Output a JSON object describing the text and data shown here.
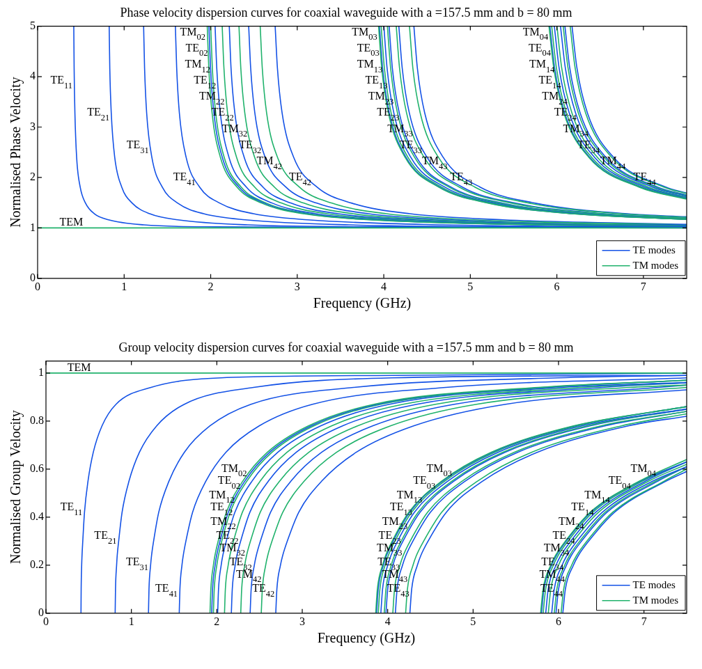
{
  "chart_data": [
    {
      "type": "line",
      "title": "Phase velocity dispersion curves for coaxial waveguide with a =157.5 mm and b = 80 mm",
      "xlabel": "Frequency (GHz)",
      "ylabel": "Normalised Phase Velocity",
      "xlim": [
        0,
        7.5
      ],
      "xticks": [
        0,
        1,
        2,
        3,
        4,
        5,
        6,
        7
      ],
      "ylim": [
        0,
        5
      ],
      "yticks": [
        0,
        1,
        2,
        3,
        4,
        5
      ],
      "grid": false,
      "legend": "bottom right",
      "marker": "none",
      "line_style": "solid",
      "series": [
        {
          "color": "#20b26c",
          "x": [
            0,
            7.5
          ],
          "values": [
            1,
            1
          ]
        },
        {
          "name": "TE modes",
          "color": "#1452e6",
          "x": [
            0.418,
            0.422,
            0.431,
            0.451,
            0.492,
            0.554,
            0.656,
            0.82,
            1.23,
            2.05,
            4.1,
            7.5
          ],
          "values": [
            5,
            4.17,
            3.28,
            2.4,
            1.81,
            1.49,
            1.28,
            1.16,
            1.06,
            1.02,
            1.01,
            1
          ]
        },
        {
          "color": "#1452e6",
          "x": [
            0.827,
            0.834,
            0.851,
            0.891,
            0.972,
            1.094,
            1.296,
            1.62,
            2.43,
            4.05,
            7.5
          ],
          "values": [
            5,
            4.17,
            3.28,
            2.4,
            1.81,
            1.49,
            1.28,
            1.16,
            1.06,
            1.02,
            1.01
          ]
        },
        {
          "color": "#1452e6",
          "x": [
            1.225,
            1.236,
            1.26,
            1.32,
            1.44,
            1.62,
            1.92,
            2.4,
            3.6,
            6,
            7.5
          ],
          "values": [
            5,
            4.17,
            3.28,
            2.4,
            1.81,
            1.49,
            1.28,
            1.16,
            1.06,
            1.02,
            1.01
          ]
        },
        {
          "color": "#1452e6",
          "x": [
            1.592,
            1.607,
            1.638,
            1.716,
            1.872,
            2.106,
            2.496,
            3.12,
            4.68,
            7.5
          ],
          "values": [
            5,
            4.17,
            3.28,
            2.4,
            1.81,
            1.49,
            1.28,
            1.16,
            1.06,
            1.02
          ]
        },
        {
          "name": "TM modes",
          "color": "#20b26c",
          "x": [
            1.96,
            1.978,
            2.016,
            2.112,
            2.304,
            2.592,
            3.072,
            3.84,
            5.76,
            7.5
          ],
          "values": [
            5,
            4.17,
            3.28,
            2.4,
            1.81,
            1.49,
            1.28,
            1.16,
            1.06,
            1.03
          ]
        },
        {
          "color": "#1452e6",
          "x": [
            1.98,
            1.998,
            2.037,
            2.134,
            2.328,
            2.619,
            3.104,
            3.88,
            5.82,
            7.5
          ],
          "values": [
            5,
            4.17,
            3.28,
            2.4,
            1.81,
            1.49,
            1.28,
            1.16,
            1.06,
            1.04
          ]
        },
        {
          "color": "#20b26c",
          "x": [
            2,
            2.019,
            2.058,
            2.156,
            2.352,
            2.646,
            3.136,
            3.92,
            5.88,
            7.5
          ],
          "values": [
            5,
            4.17,
            3.28,
            2.4,
            1.81,
            1.49,
            1.28,
            1.16,
            1.06,
            1.04
          ]
        },
        {
          "color": "#1452e6",
          "x": [
            2.051,
            2.07,
            2.111,
            2.211,
            2.412,
            2.714,
            3.216,
            4.02,
            6.03,
            7.5
          ],
          "values": [
            5,
            4.17,
            3.28,
            2.4,
            1.81,
            1.49,
            1.28,
            1.16,
            1.06,
            1.04
          ]
        },
        {
          "color": "#20b26c",
          "x": [
            2.133,
            2.153,
            2.195,
            2.299,
            2.508,
            2.822,
            3.344,
            4.18,
            6.27,
            7.5
          ],
          "values": [
            5,
            4.17,
            3.28,
            2.4,
            1.81,
            1.49,
            1.28,
            1.16,
            1.06,
            1.04
          ]
        },
        {
          "color": "#1452e6",
          "x": [
            2.215,
            2.235,
            2.279,
            2.387,
            2.604,
            2.93,
            3.472,
            4.34,
            6.51,
            7.5
          ],
          "values": [
            5,
            4.17,
            3.28,
            2.4,
            1.81,
            1.49,
            1.28,
            1.16,
            1.06,
            1.05
          ]
        },
        {
          "color": "#20b26c",
          "x": [
            2.327,
            2.348,
            2.394,
            2.508,
            2.736,
            3.078,
            3.648,
            4.56,
            6.84,
            7.5
          ],
          "values": [
            5,
            4.17,
            3.28,
            2.4,
            1.81,
            1.49,
            1.28,
            1.16,
            1.06,
            1.05
          ]
        },
        {
          "color": "#1452e6",
          "x": [
            2.439,
            2.462,
            2.51,
            2.629,
            2.868,
            3.227,
            3.824,
            4.78,
            7.17,
            7.5
          ],
          "values": [
            5,
            4.17,
            3.28,
            2.4,
            1.81,
            1.49,
            1.28,
            1.16,
            1.06,
            1.06
          ]
        },
        {
          "color": "#20b26c",
          "x": [
            2.572,
            2.596,
            2.646,
            2.772,
            3.024,
            3.402,
            4.032,
            5.04,
            7.5
          ],
          "values": [
            5,
            4.17,
            3.28,
            2.4,
            1.81,
            1.49,
            1.28,
            1.16,
            1.06
          ]
        },
        {
          "color": "#1452e6",
          "x": [
            2.745,
            2.771,
            2.825,
            2.959,
            3.228,
            3.632,
            4.304,
            5.38,
            7.5
          ],
          "values": [
            5,
            4.17,
            3.28,
            2.4,
            1.81,
            1.49,
            1.28,
            1.16,
            1.07
          ]
        },
        {
          "color": "#20b26c",
          "x": [
            3.94,
            3.976,
            4.053,
            4.246,
            4.632,
            5.211,
            6.176,
            7.5
          ],
          "values": [
            5,
            4.17,
            3.28,
            2.4,
            1.81,
            1.49,
            1.28,
            1.17
          ]
        },
        {
          "color": "#1452e6",
          "x": [
            3.95,
            3.986,
            4.064,
            4.257,
            4.644,
            5.225,
            6.192,
            7.5
          ],
          "values": [
            5,
            4.17,
            3.28,
            2.4,
            1.81,
            1.49,
            1.28,
            1.17
          ]
        },
        {
          "color": "#20b26c",
          "x": [
            3.97,
            4.007,
            4.085,
            4.279,
            4.668,
            5.252,
            6.224,
            7.5
          ],
          "values": [
            5,
            4.17,
            3.28,
            2.4,
            1.81,
            1.49,
            1.28,
            1.17
          ]
        },
        {
          "color": "#1452e6",
          "x": [
            4.001,
            4.038,
            4.116,
            4.312,
            4.704,
            5.292,
            6.272,
            7.5
          ],
          "values": [
            5,
            4.17,
            3.28,
            2.4,
            1.81,
            1.49,
            1.28,
            1.17
          ]
        },
        {
          "color": "#20b26c",
          "x": [
            4.042,
            4.079,
            4.158,
            4.356,
            4.752,
            5.346,
            6.336,
            7.5
          ],
          "values": [
            5,
            4.17,
            3.28,
            2.4,
            1.81,
            1.49,
            1.28,
            1.18
          ]
        },
        {
          "color": "#1452e6",
          "x": [
            4.062,
            4.099,
            4.179,
            4.378,
            4.776,
            5.373,
            6.368,
            7.5
          ],
          "values": [
            5,
            4.17,
            3.28,
            2.4,
            1.81,
            1.49,
            1.28,
            1.18
          ]
        },
        {
          "color": "#20b26c",
          "x": [
            4.144,
            4.182,
            4.263,
            4.466,
            4.872,
            5.481,
            6.496,
            7.5
          ],
          "values": [
            5,
            4.17,
            3.28,
            2.4,
            1.81,
            1.49,
            1.28,
            1.19
          ]
        },
        {
          "color": "#1452e6",
          "x": [
            4.174,
            4.213,
            4.295,
            4.499,
            4.908,
            5.522,
            6.544,
            7.5
          ],
          "values": [
            5,
            4.17,
            3.28,
            2.4,
            1.81,
            1.49,
            1.28,
            1.19
          ]
        },
        {
          "color": "#20b26c",
          "x": [
            4.297,
            4.336,
            4.421,
            4.631,
            5.052,
            5.684,
            6.736,
            7.5
          ],
          "values": [
            5,
            4.17,
            3.28,
            2.4,
            1.81,
            1.49,
            1.28,
            1.21
          ]
        },
        {
          "color": "#1452e6",
          "x": [
            4.348,
            4.388,
            4.473,
            4.686,
            5.112,
            5.751,
            6.816,
            7.5
          ],
          "values": [
            5,
            4.17,
            3.28,
            2.4,
            1.81,
            1.49,
            1.28,
            1.22
          ]
        },
        {
          "color": "#20b26c",
          "x": [
            5.909,
            5.964,
            6.08,
            6.369,
            6.948,
            7.5
          ],
          "values": [
            5,
            4.17,
            3.28,
            2.4,
            1.81,
            1.57
          ]
        },
        {
          "color": "#1452e6",
          "x": [
            5.919,
            5.974,
            6.09,
            6.38,
            6.96,
            7.5
          ],
          "values": [
            5,
            4.17,
            3.28,
            2.4,
            1.81,
            1.58
          ]
        },
        {
          "color": "#20b26c",
          "x": [
            5.94,
            5.995,
            6.111,
            6.402,
            6.984,
            7.5
          ],
          "values": [
            5,
            4.17,
            3.28,
            2.4,
            1.81,
            1.59
          ]
        },
        {
          "color": "#1452e6",
          "x": [
            5.971,
            6.026,
            6.143,
            6.435,
            7.02,
            7.5
          ],
          "values": [
            5,
            4.17,
            3.28,
            2.4,
            1.81,
            1.6
          ]
        },
        {
          "color": "#20b26c",
          "x": [
            6.001,
            6.056,
            6.174,
            6.468,
            7.056,
            7.5
          ],
          "values": [
            5,
            4.17,
            3.28,
            2.4,
            1.81,
            1.61
          ]
        },
        {
          "color": "#1452e6",
          "x": [
            6.042,
            6.098,
            6.216,
            6.512,
            7.104,
            7.5
          ],
          "values": [
            5,
            4.17,
            3.28,
            2.4,
            1.81,
            1.63
          ]
        },
        {
          "color": "#20b26c",
          "x": [
            6.073,
            6.129,
            6.248,
            6.545,
            7.14,
            7.5
          ],
          "values": [
            5,
            4.17,
            3.28,
            2.4,
            1.81,
            1.64
          ]
        },
        {
          "color": "#1452e6",
          "x": [
            6.093,
            6.149,
            6.269,
            6.567,
            7.164,
            7.5
          ],
          "values": [
            5,
            4.17,
            3.28,
            2.4,
            1.81,
            1.65
          ]
        },
        {
          "color": "#20b26c",
          "x": [
            6.154,
            6.211,
            6.332,
            6.633,
            7.236,
            7.5
          ],
          "values": [
            5,
            4.17,
            3.28,
            2.4,
            1.81,
            1.68
          ]
        },
        {
          "color": "#1452e6",
          "x": [
            6.175,
            6.232,
            6.353,
            6.655,
            7.26,
            7.5
          ],
          "values": [
            5,
            4.17,
            3.28,
            2.4,
            1.81,
            1.69
          ]
        }
      ],
      "annotations": [
        {
          "text": "TE$_{11}$",
          "x": 0.426,
          "y": 3.82
        },
        {
          "text": "TE$_{21}$",
          "x": 0.855,
          "y": 3.18
        },
        {
          "text": "TE$_{31}$",
          "x": 1.31,
          "y": 2.54
        },
        {
          "text": "TE$_{41}$",
          "x": 1.848,
          "y": 1.9
        },
        {
          "text": "TEM",
          "x": 0.55,
          "y": 1
        },
        {
          "text": "TM$_{02}$",
          "x": 1.964,
          "y": 4.78
        },
        {
          "text": "TE$_{02}$",
          "x": 1.992,
          "y": 4.46
        },
        {
          "text": "TM$_{12}$",
          "x": 2.02,
          "y": 4.14
        },
        {
          "text": "TE$_{12}$",
          "x": 2.086,
          "y": 3.82
        },
        {
          "text": "TM$_{22}$",
          "x": 2.184,
          "y": 3.5
        },
        {
          "text": "TE$_{22}$",
          "x": 2.291,
          "y": 3.18
        },
        {
          "text": "TM$_{32}$",
          "x": 2.448,
          "y": 2.86
        },
        {
          "text": "TE$_{32}$",
          "x": 2.61,
          "y": 2.54
        },
        {
          "text": "TM$_{42}$",
          "x": 2.849,
          "y": 2.22
        },
        {
          "text": "TE$_{42}$",
          "x": 3.187,
          "y": 1.9
        },
        {
          "text": "TM$_{03}$",
          "x": 3.949,
          "y": 4.78
        },
        {
          "text": "TE$_{03}$",
          "x": 3.973,
          "y": 4.46
        },
        {
          "text": "TM$_{13}$",
          "x": 4.009,
          "y": 4.14
        },
        {
          "text": "TE$_{13}$",
          "x": 4.068,
          "y": 3.82
        },
        {
          "text": "TM$_{23}$",
          "x": 4.138,
          "y": 3.5
        },
        {
          "text": "TE$_{23}$",
          "x": 4.202,
          "y": 3.18
        },
        {
          "text": "TM$_{33}$",
          "x": 4.36,
          "y": 2.86
        },
        {
          "text": "TE$_{33}$",
          "x": 4.466,
          "y": 2.54
        },
        {
          "text": "TM$_{43}$",
          "x": 4.759,
          "y": 2.22
        },
        {
          "text": "TE$_{43}$",
          "x": 5.047,
          "y": 1.9
        },
        {
          "text": "TM$_{04}$",
          "x": 5.924,
          "y": 4.78
        },
        {
          "text": "TE$_{04}$",
          "x": 5.955,
          "y": 4.46
        },
        {
          "text": "TM$_{14}$",
          "x": 5.998,
          "y": 4.14
        },
        {
          "text": "TE$_{14}$",
          "x": 6.072,
          "y": 3.82
        },
        {
          "text": "TM$_{24}$",
          "x": 6.145,
          "y": 3.5
        },
        {
          "text": "TE$_{24}$",
          "x": 6.25,
          "y": 3.18
        },
        {
          "text": "TM$_{34}$",
          "x": 6.39,
          "y": 2.86
        },
        {
          "text": "TE$_{34}$",
          "x": 6.52,
          "y": 2.54
        },
        {
          "text": "TM$_{44}$",
          "x": 6.817,
          "y": 2.22
        },
        {
          "text": "TE$_{44}$",
          "x": 7.167,
          "y": 1.9
        }
      ]
    },
    {
      "type": "line",
      "title": "Group velocity dispersion curves for coaxial waveguide with a =157.5 mm and b = 80 mm",
      "xlabel": "Frequency (GHz)",
      "ylabel": "Normalised Group Velocity",
      "xlim": [
        0,
        7.5
      ],
      "xticks": [
        0,
        1,
        2,
        3,
        4,
        5,
        6,
        7
      ],
      "ylim": [
        0,
        1.05
      ],
      "yticks": [
        0,
        0.2,
        0.4,
        0.6,
        0.8,
        1
      ],
      "grid": false,
      "legend": "bottom right",
      "marker": "none",
      "line_style": "solid",
      "series": [
        {
          "color": "#20b26c",
          "x": [
            0,
            7.5
          ],
          "values": [
            1,
            1
          ]
        },
        {
          "name": "TE modes",
          "color": "#1452e6",
          "x": [
            0.41,
            0.412,
            0.418,
            0.422,
            0.431,
            0.451,
            0.492,
            0.554,
            0.656,
            0.82,
            1.23,
            2.05,
            4.1,
            7.5
          ],
          "values": [
            0,
            0.1,
            0.2,
            0.24,
            0.3,
            0.42,
            0.55,
            0.67,
            0.78,
            0.87,
            0.94,
            0.98,
            0.99,
            1
          ]
        },
        {
          "color": "#1452e6",
          "x": [
            0.81,
            0.814,
            0.827,
            0.834,
            0.851,
            0.891,
            0.972,
            1.094,
            1.296,
            1.62,
            2.43,
            4.05,
            7.5
          ],
          "values": [
            0,
            0.1,
            0.2,
            0.24,
            0.3,
            0.42,
            0.55,
            0.67,
            0.78,
            0.87,
            0.94,
            0.98,
            0.99
          ]
        },
        {
          "color": "#1452e6",
          "x": [
            1.2,
            1.206,
            1.225,
            1.236,
            1.26,
            1.32,
            1.44,
            1.62,
            1.92,
            2.4,
            3.6,
            6,
            7.5
          ],
          "values": [
            0,
            0.1,
            0.2,
            0.24,
            0.3,
            0.42,
            0.55,
            0.67,
            0.78,
            0.87,
            0.94,
            0.98,
            0.99
          ]
        },
        {
          "color": "#1452e6",
          "x": [
            1.56,
            1.568,
            1.592,
            1.607,
            1.638,
            1.716,
            1.872,
            2.106,
            2.496,
            3.12,
            4.68,
            7.5
          ],
          "values": [
            0,
            0.1,
            0.2,
            0.24,
            0.3,
            0.42,
            0.55,
            0.67,
            0.78,
            0.87,
            0.94,
            0.98
          ]
        },
        {
          "name": "TM modes",
          "color": "#20b26c",
          "x": [
            1.92,
            1.93,
            1.96,
            1.978,
            2.016,
            2.112,
            2.304,
            2.592,
            3.072,
            3.84,
            5.76,
            7.5
          ],
          "values": [
            0,
            0.1,
            0.2,
            0.24,
            0.3,
            0.42,
            0.55,
            0.67,
            0.78,
            0.87,
            0.94,
            0.97
          ]
        },
        {
          "color": "#1452e6",
          "x": [
            1.94,
            1.95,
            1.98,
            1.998,
            2.037,
            2.134,
            2.328,
            2.619,
            3.104,
            3.88,
            5.82,
            7.5
          ],
          "values": [
            0,
            0.1,
            0.2,
            0.24,
            0.3,
            0.42,
            0.55,
            0.67,
            0.78,
            0.87,
            0.94,
            0.97
          ]
        },
        {
          "color": "#20b26c",
          "x": [
            1.96,
            1.97,
            2,
            2.019,
            2.058,
            2.156,
            2.352,
            2.646,
            3.136,
            3.92,
            5.88,
            7.5
          ],
          "values": [
            0,
            0.1,
            0.2,
            0.24,
            0.3,
            0.42,
            0.55,
            0.67,
            0.78,
            0.87,
            0.94,
            0.97
          ]
        },
        {
          "color": "#1452e6",
          "x": [
            2.01,
            2.02,
            2.051,
            2.07,
            2.111,
            2.211,
            2.412,
            2.714,
            3.216,
            4.02,
            6.03,
            7.5
          ],
          "values": [
            0,
            0.1,
            0.2,
            0.24,
            0.3,
            0.42,
            0.55,
            0.67,
            0.78,
            0.87,
            0.94,
            0.96
          ]
        },
        {
          "color": "#20b26c",
          "x": [
            2.09,
            2.1,
            2.133,
            2.153,
            2.195,
            2.299,
            2.508,
            2.822,
            3.344,
            4.18,
            6.27,
            7.5
          ],
          "values": [
            0,
            0.1,
            0.2,
            0.24,
            0.3,
            0.42,
            0.55,
            0.67,
            0.78,
            0.87,
            0.94,
            0.96
          ]
        },
        {
          "color": "#1452e6",
          "x": [
            2.17,
            2.181,
            2.215,
            2.235,
            2.279,
            2.387,
            2.604,
            2.93,
            3.472,
            4.34,
            6.51,
            7.5
          ],
          "values": [
            0,
            0.1,
            0.2,
            0.24,
            0.3,
            0.42,
            0.55,
            0.67,
            0.78,
            0.87,
            0.94,
            0.96
          ]
        },
        {
          "color": "#20b26c",
          "x": [
            2.28,
            2.291,
            2.327,
            2.348,
            2.394,
            2.508,
            2.736,
            3.078,
            3.648,
            4.56,
            6.84,
            7.5
          ],
          "values": [
            0,
            0.1,
            0.2,
            0.24,
            0.3,
            0.42,
            0.55,
            0.67,
            0.78,
            0.87,
            0.94,
            0.95
          ]
        },
        {
          "color": "#1452e6",
          "x": [
            2.39,
            2.402,
            2.439,
            2.462,
            2.51,
            2.629,
            2.868,
            3.227,
            3.824,
            4.78,
            7.17,
            7.5
          ],
          "values": [
            0,
            0.1,
            0.2,
            0.24,
            0.3,
            0.42,
            0.55,
            0.67,
            0.78,
            0.87,
            0.94,
            0.95
          ]
        },
        {
          "color": "#20b26c",
          "x": [
            2.52,
            2.533,
            2.572,
            2.596,
            2.646,
            2.772,
            3.024,
            3.402,
            4.032,
            5.04,
            7.5
          ],
          "values": [
            0,
            0.1,
            0.2,
            0.24,
            0.3,
            0.42,
            0.55,
            0.67,
            0.78,
            0.87,
            0.94
          ]
        },
        {
          "color": "#1452e6",
          "x": [
            2.69,
            2.703,
            2.745,
            2.771,
            2.825,
            2.959,
            3.228,
            3.632,
            4.304,
            5.38,
            7.5
          ],
          "values": [
            0,
            0.1,
            0.2,
            0.24,
            0.3,
            0.42,
            0.55,
            0.67,
            0.78,
            0.87,
            0.93
          ]
        },
        {
          "color": "#20b26c",
          "x": [
            3.86,
            3.879,
            3.94,
            3.976,
            4.053,
            4.246,
            4.632,
            5.211,
            6.176,
            7.5
          ],
          "values": [
            0,
            0.1,
            0.2,
            0.24,
            0.3,
            0.42,
            0.55,
            0.67,
            0.78,
            0.86
          ]
        },
        {
          "color": "#1452e6",
          "x": [
            3.87,
            3.889,
            3.95,
            3.986,
            4.064,
            4.257,
            4.644,
            5.225,
            6.192,
            7.5
          ],
          "values": [
            0,
            0.1,
            0.2,
            0.24,
            0.3,
            0.42,
            0.55,
            0.67,
            0.78,
            0.86
          ]
        },
        {
          "color": "#20b26c",
          "x": [
            3.89,
            3.909,
            3.97,
            4.007,
            4.085,
            4.279,
            4.668,
            5.252,
            6.224,
            7.5
          ],
          "values": [
            0,
            0.1,
            0.2,
            0.24,
            0.3,
            0.42,
            0.55,
            0.67,
            0.78,
            0.86
          ]
        },
        {
          "color": "#1452e6",
          "x": [
            3.92,
            3.94,
            4.001,
            4.038,
            4.116,
            4.312,
            4.704,
            5.292,
            6.272,
            7.5
          ],
          "values": [
            0,
            0.1,
            0.2,
            0.24,
            0.3,
            0.42,
            0.55,
            0.67,
            0.78,
            0.85
          ]
        },
        {
          "color": "#20b26c",
          "x": [
            3.96,
            3.98,
            4.042,
            4.079,
            4.158,
            4.356,
            4.752,
            5.346,
            6.336,
            7.5
          ],
          "values": [
            0,
            0.1,
            0.2,
            0.24,
            0.3,
            0.42,
            0.55,
            0.67,
            0.78,
            0.85
          ]
        },
        {
          "color": "#1452e6",
          "x": [
            3.98,
            4,
            4.062,
            4.099,
            4.179,
            4.378,
            4.776,
            5.373,
            6.368,
            7.5
          ],
          "values": [
            0,
            0.1,
            0.2,
            0.24,
            0.3,
            0.42,
            0.55,
            0.67,
            0.78,
            0.85
          ]
        },
        {
          "color": "#20b26c",
          "x": [
            4.06,
            4.08,
            4.144,
            4.182,
            4.263,
            4.466,
            4.872,
            5.481,
            6.496,
            7.5
          ],
          "values": [
            0,
            0.1,
            0.2,
            0.24,
            0.3,
            0.42,
            0.55,
            0.67,
            0.78,
            0.84
          ]
        },
        {
          "color": "#1452e6",
          "x": [
            4.09,
            4.11,
            4.174,
            4.213,
            4.295,
            4.499,
            4.908,
            5.522,
            6.544,
            7.5
          ],
          "values": [
            0,
            0.1,
            0.2,
            0.24,
            0.3,
            0.42,
            0.55,
            0.67,
            0.78,
            0.84
          ]
        },
        {
          "color": "#20b26c",
          "x": [
            4.21,
            4.231,
            4.297,
            4.336,
            4.421,
            4.631,
            5.052,
            5.684,
            6.736,
            7.5
          ],
          "values": [
            0,
            0.1,
            0.2,
            0.24,
            0.3,
            0.42,
            0.55,
            0.67,
            0.78,
            0.83
          ]
        },
        {
          "color": "#1452e6",
          "x": [
            4.26,
            4.281,
            4.348,
            4.388,
            4.473,
            4.686,
            5.112,
            5.751,
            6.816,
            7.5
          ],
          "values": [
            0,
            0.1,
            0.2,
            0.24,
            0.3,
            0.42,
            0.55,
            0.67,
            0.78,
            0.82
          ]
        },
        {
          "color": "#20b26c",
          "x": [
            5.79,
            5.819,
            5.909,
            5.964,
            6.08,
            6.369,
            6.948,
            7.5
          ],
          "values": [
            0,
            0.1,
            0.2,
            0.24,
            0.3,
            0.42,
            0.55,
            0.64
          ]
        },
        {
          "color": "#1452e6",
          "x": [
            5.8,
            5.829,
            5.919,
            5.974,
            6.09,
            6.38,
            6.96,
            7.5
          ],
          "values": [
            0,
            0.1,
            0.2,
            0.24,
            0.3,
            0.42,
            0.55,
            0.63
          ]
        },
        {
          "color": "#20b26c",
          "x": [
            5.82,
            5.849,
            5.94,
            5.995,
            6.111,
            6.402,
            6.984,
            7.5
          ],
          "values": [
            0,
            0.1,
            0.2,
            0.24,
            0.3,
            0.42,
            0.55,
            0.63
          ]
        },
        {
          "color": "#1452e6",
          "x": [
            5.85,
            5.879,
            5.971,
            6.026,
            6.143,
            6.435,
            7.02,
            7.5
          ],
          "values": [
            0,
            0.1,
            0.2,
            0.24,
            0.3,
            0.42,
            0.55,
            0.63
          ]
        },
        {
          "color": "#20b26c",
          "x": [
            5.88,
            5.909,
            6.001,
            6.056,
            6.174,
            6.468,
            7.056,
            7.5
          ],
          "values": [
            0,
            0.1,
            0.2,
            0.24,
            0.3,
            0.42,
            0.55,
            0.62
          ]
        },
        {
          "color": "#1452e6",
          "x": [
            5.92,
            5.95,
            6.042,
            6.098,
            6.216,
            6.512,
            7.104,
            7.5
          ],
          "values": [
            0,
            0.1,
            0.2,
            0.24,
            0.3,
            0.42,
            0.55,
            0.61
          ]
        },
        {
          "color": "#20b26c",
          "x": [
            5.95,
            5.98,
            6.073,
            6.129,
            6.248,
            6.545,
            7.14,
            7.5
          ],
          "values": [
            0,
            0.1,
            0.2,
            0.24,
            0.3,
            0.42,
            0.55,
            0.61
          ]
        },
        {
          "color": "#1452e6",
          "x": [
            5.97,
            6,
            6.093,
            6.149,
            6.269,
            6.567,
            7.164,
            7.5
          ],
          "values": [
            0,
            0.1,
            0.2,
            0.24,
            0.3,
            0.42,
            0.55,
            0.61
          ]
        },
        {
          "color": "#20b26c",
          "x": [
            6.03,
            6.06,
            6.154,
            6.211,
            6.332,
            6.633,
            7.236,
            7.5
          ],
          "values": [
            0,
            0.1,
            0.2,
            0.24,
            0.3,
            0.42,
            0.55,
            0.6
          ]
        },
        {
          "color": "#1452e6",
          "x": [
            6.05,
            6.08,
            6.175,
            6.232,
            6.353,
            6.655,
            7.26,
            7.5
          ],
          "values": [
            0,
            0.1,
            0.2,
            0.24,
            0.3,
            0.42,
            0.55,
            0.59
          ]
        }
      ],
      "annotations": [
        {
          "text": "TEM",
          "x": 0.55,
          "y": 1
        },
        {
          "text": "TE$_{11}$",
          "x": 0.451,
          "y": 0.42
        },
        {
          "text": "TE$_{21}$",
          "x": 0.851,
          "y": 0.3
        },
        {
          "text": "TE$_{31}$",
          "x": 1.223,
          "y": 0.19
        },
        {
          "text": "TE$_{41}$",
          "x": 1.566,
          "y": 0.08
        },
        {
          "text": "TM$_{02}$",
          "x": 2.376,
          "y": 0.58
        },
        {
          "text": "TE$_{02}$",
          "x": 2.298,
          "y": 0.53
        },
        {
          "text": "TM$_{12}$",
          "x": 2.231,
          "y": 0.47
        },
        {
          "text": "TE$_{12}$",
          "x": 2.211,
          "y": 0.42
        },
        {
          "text": "TM$_{22}$",
          "x": 2.247,
          "y": 0.36
        },
        {
          "text": "TE$_{22}$",
          "x": 2.279,
          "y": 0.3
        },
        {
          "text": "TM$_{32}$",
          "x": 2.356,
          "y": 0.25
        },
        {
          "text": "TE$_{32}$",
          "x": 2.435,
          "y": 0.19
        },
        {
          "text": "TM$_{42}$",
          "x": 2.548,
          "y": 0.14
        },
        {
          "text": "TE$_{42}$",
          "x": 2.701,
          "y": 0.08
        },
        {
          "text": "TM$_{03}$",
          "x": 4.777,
          "y": 0.58
        },
        {
          "text": "TE$_{03}$",
          "x": 4.584,
          "y": 0.53
        },
        {
          "text": "TM$_{13}$",
          "x": 4.429,
          "y": 0.47
        },
        {
          "text": "TE$_{13}$",
          "x": 4.312,
          "y": 0.42
        },
        {
          "text": "TM$_{23}$",
          "x": 4.257,
          "y": 0.36
        },
        {
          "text": "TE$_{23}$",
          "x": 4.179,
          "y": 0.3
        },
        {
          "text": "TM$_{33}$",
          "x": 4.195,
          "y": 0.25
        },
        {
          "text": "TE$_{33}$",
          "x": 4.168,
          "y": 0.19
        },
        {
          "text": "TM$_{43}$",
          "x": 4.257,
          "y": 0.14
        },
        {
          "text": "TE$_{43}$",
          "x": 4.277,
          "y": 0.08
        },
        {
          "text": "TM$_{04}$",
          "x": 7.165,
          "y": 0.58
        },
        {
          "text": "TE$_{04}$",
          "x": 6.871,
          "y": 0.53
        },
        {
          "text": "TM$_{14}$",
          "x": 6.626,
          "y": 0.47
        },
        {
          "text": "TE$_{14}$",
          "x": 6.435,
          "y": 0.42
        },
        {
          "text": "TM$_{24}$",
          "x": 6.321,
          "y": 0.36
        },
        {
          "text": "TE$_{24}$",
          "x": 6.216,
          "y": 0.3
        },
        {
          "text": "TM$_{34}$",
          "x": 6.148,
          "y": 0.25
        },
        {
          "text": "TE$_{34}$",
          "x": 6.083,
          "y": 0.19
        },
        {
          "text": "TM$_{44}$",
          "x": 6.098,
          "y": 0.14
        },
        {
          "text": "TE$_{44}$",
          "x": 6.074,
          "y": 0.08
        }
      ]
    }
  ]
}
